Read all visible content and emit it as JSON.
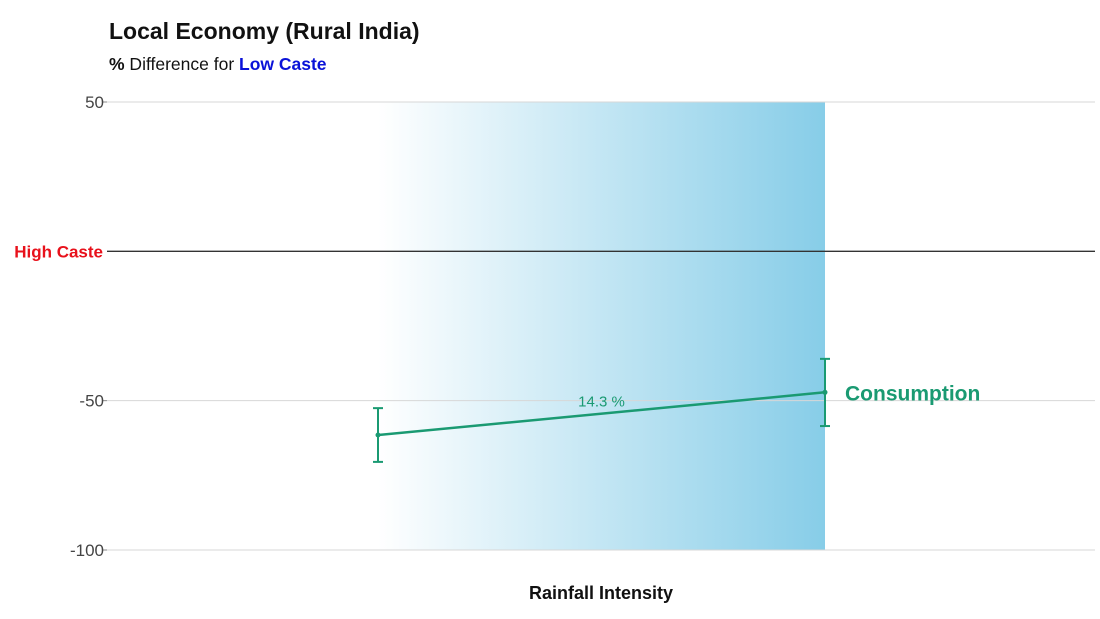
{
  "chart_data": {
    "type": "line",
    "title": "Local Economy (Rural India)",
    "subtitle": {
      "prefix": "%",
      "middle": " Difference for ",
      "highlight": "Low Caste"
    },
    "xlabel": "Rainfall Intensity",
    "ylim": [
      -100,
      50
    ],
    "yticks": [
      {
        "value": 50,
        "label": "50"
      },
      {
        "value": -50,
        "label": "-50"
      },
      {
        "value": -100,
        "label": "-100"
      }
    ],
    "reference_line": {
      "value": 0,
      "label": "High Caste"
    },
    "x": [
      0,
      1
    ],
    "series": [
      {
        "name": "Consumption",
        "values": [
          -61.5,
          -47.2
        ],
        "error_low": [
          -70.5,
          -58.5
        ],
        "error_high": [
          -52.5,
          -36.0
        ],
        "change_label": "14.3 %"
      }
    ],
    "grid": true
  },
  "colors": {
    "series": "#1a9a72",
    "reference": "#e8111b",
    "highlight": "#0a12d8",
    "shade": "#87cde8",
    "grid": "#d7d7d7",
    "zero_line": "#333333"
  }
}
